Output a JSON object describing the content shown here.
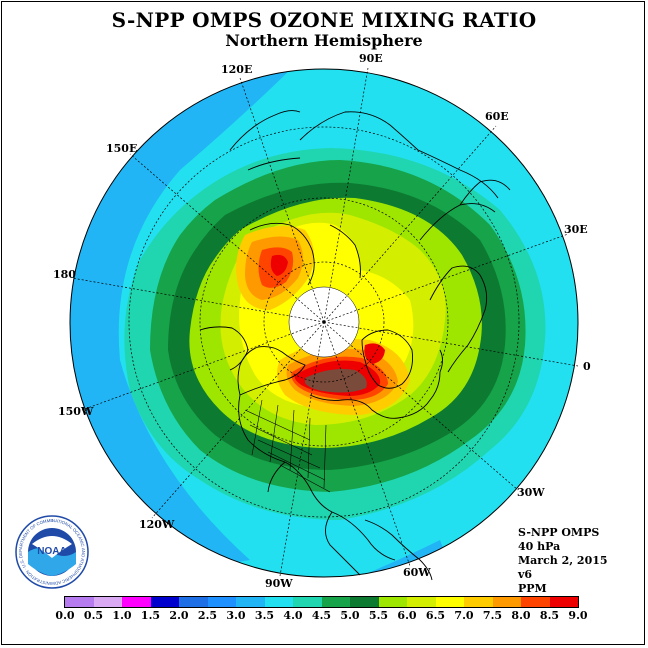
{
  "header": {
    "title": "S-NPP OMPS OZONE MIXING RATIO",
    "subtitle": "Northern Hemisphere"
  },
  "map": {
    "projection": "north-polar-stereographic",
    "longitude_labels": [
      "90E",
      "60E",
      "30E",
      "0",
      "30W",
      "60W",
      "90W",
      "120W",
      "150W",
      "180",
      "150E",
      "120E"
    ],
    "features": [
      "ozone-mixing-ratio-field",
      "coastlines",
      "us-state-borders",
      "graticule",
      "polar-no-data-region"
    ],
    "high_ozone_regions": [
      "eastern Canada / Hudson Bay",
      "eastern Siberia"
    ],
    "no_data_color": "#ffffff"
  },
  "info_block": {
    "instrument": "S-NPP OMPS",
    "level": "40 hPa",
    "date": "March 2, 2015",
    "version": "v6",
    "units": "PPM"
  },
  "colorbar": {
    "ticks": [
      "0.0",
      "0.5",
      "1.0",
      "1.5",
      "2.0",
      "2.5",
      "3.0",
      "3.5",
      "4.0",
      "4.5",
      "5.0",
      "5.5",
      "6.0",
      "6.5",
      "7.0",
      "7.5",
      "8.0",
      "8.5",
      "9.0"
    ],
    "colors": [
      "#b57bef",
      "#d9a9f3",
      "#ff00ff",
      "#0000cc",
      "#1e6fe6",
      "#1e90ff",
      "#22b5f5",
      "#22e0f0",
      "#1fd6b0",
      "#16a34a",
      "#0d7a32",
      "#9ee600",
      "#d4ee00",
      "#ffff00",
      "#ffcc00",
      "#ff9900",
      "#ff4400",
      "#ee0000",
      "#7a4a3a"
    ]
  },
  "logo": {
    "text": "NOAA",
    "ring_text": "NATIONAL OCEANIC AND ATMOSPHERIC ADMINISTRATION · U.S. DEPARTMENT OF COMMERCE"
  }
}
